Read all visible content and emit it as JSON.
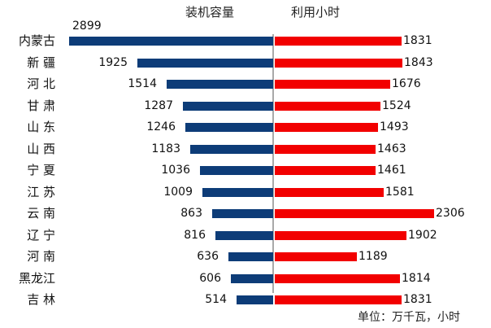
{
  "chart_data": {
    "type": "bar",
    "orientation": "horizontal-diverging",
    "title": "",
    "categories": [
      "内蒙古",
      "新 疆",
      "河 北",
      "甘 肃",
      "山 东",
      "山 西",
      "宁 夏",
      "江 苏",
      "云 南",
      "辽 宁",
      "河 南",
      "黑龙江",
      "吉 林"
    ],
    "series": [
      {
        "name": "装机容量",
        "color": "#0d3c78",
        "direction": "left",
        "values": [
          2899,
          1925,
          1514,
          1287,
          1246,
          1183,
          1036,
          1009,
          863,
          816,
          636,
          606,
          514
        ]
      },
      {
        "name": "利用小时",
        "color": "#f20000",
        "direction": "right",
        "values": [
          1831,
          1843,
          1676,
          1524,
          1493,
          1463,
          1461,
          1581,
          2306,
          1902,
          1189,
          1814,
          1831
        ]
      }
    ],
    "legend": [
      "装机容量",
      "利用小时"
    ],
    "annotation": "单位：万千瓦，小时",
    "grid": false
  },
  "headers": {
    "left": "装机容量",
    "right": "利用小时"
  },
  "unit_label": "单位：万千瓦，小时"
}
